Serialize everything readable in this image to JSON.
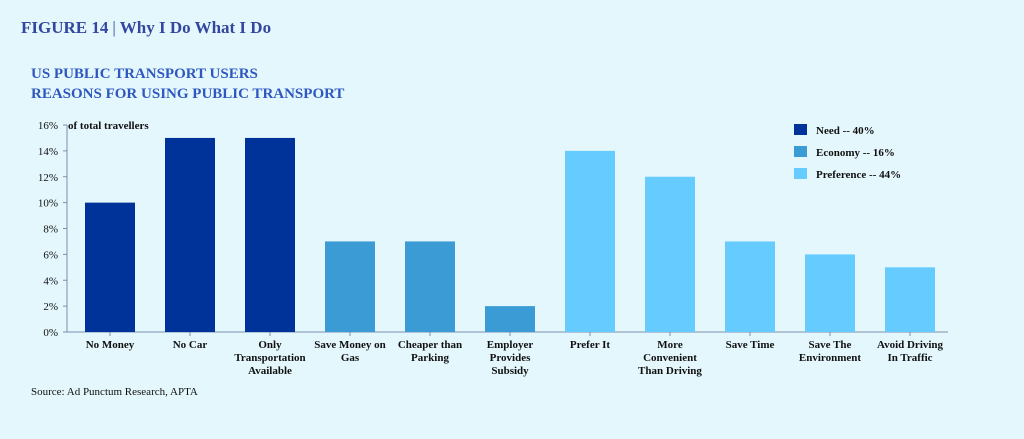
{
  "figure": {
    "number": "FIGURE 14",
    "separator": "|",
    "title": "Why I Do What I Do"
  },
  "subtitle": {
    "line1": "US PUBLIC TRANSPORT USERS",
    "line2": "REASONS FOR USING PUBLIC TRANSPORT"
  },
  "source": "Source: Ad Punctum Research, APTA",
  "colors": {
    "background": "#e4f7fc",
    "need": "#003399",
    "economy": "#3b9bd4",
    "preference": "#66ccff",
    "title": "#3347a0",
    "subtitle": "#2e58c0"
  },
  "chart_data": {
    "type": "bar",
    "ylabel": "of total travellers",
    "ylim": [
      0,
      16
    ],
    "yticks": [
      "0%",
      "2%",
      "4%",
      "6%",
      "8%",
      "10%",
      "12%",
      "14%",
      "16%"
    ],
    "grid": false,
    "legend_position": "top-right",
    "legend": [
      {
        "group": "need",
        "label": "Need -- 40%"
      },
      {
        "group": "economy",
        "label": "Economy -- 16%"
      },
      {
        "group": "preference",
        "label": "Preference -- 44%"
      }
    ],
    "bars": [
      {
        "label": [
          "No Money"
        ],
        "value": 10,
        "group": "need"
      },
      {
        "label": [
          "No Car"
        ],
        "value": 15,
        "group": "need"
      },
      {
        "label": [
          "Only",
          "Transportation",
          "Available"
        ],
        "value": 15,
        "group": "need"
      },
      {
        "label": [
          "Save Money on",
          "Gas"
        ],
        "value": 7,
        "group": "economy"
      },
      {
        "label": [
          "Cheaper than",
          "Parking"
        ],
        "value": 7,
        "group": "economy"
      },
      {
        "label": [
          "Employer",
          "Provides",
          "Subsidy"
        ],
        "value": 2,
        "group": "economy"
      },
      {
        "label": [
          "Prefer It"
        ],
        "value": 14,
        "group": "preference"
      },
      {
        "label": [
          "More",
          "Convenient",
          "Than Driving"
        ],
        "value": 12,
        "group": "preference"
      },
      {
        "label": [
          "Save Time"
        ],
        "value": 7,
        "group": "preference"
      },
      {
        "label": [
          "Save The",
          "Environment"
        ],
        "value": 6,
        "group": "preference"
      },
      {
        "label": [
          "Avoid Driving",
          "In Traffic"
        ],
        "value": 5,
        "group": "preference"
      }
    ]
  }
}
